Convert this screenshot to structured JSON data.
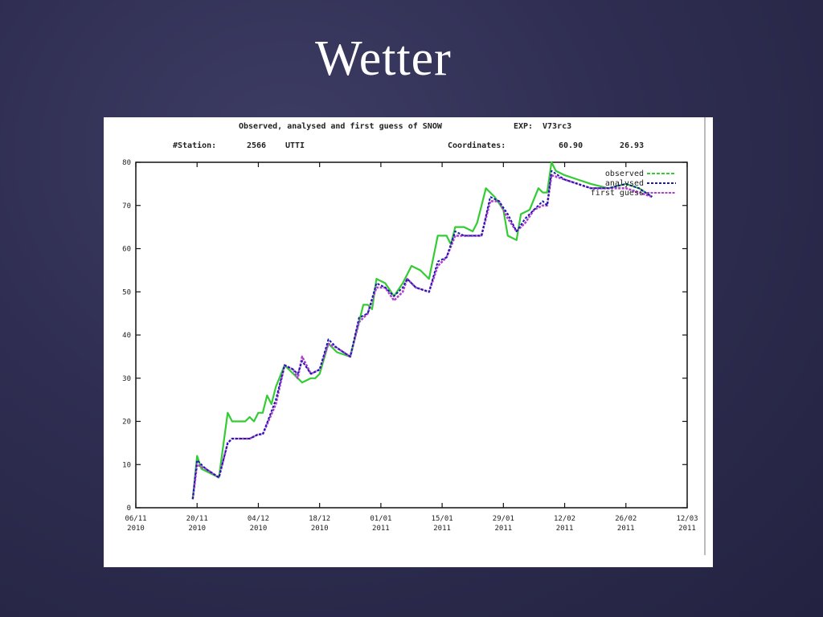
{
  "slide": {
    "title": "Wetter"
  },
  "chart_header": {
    "title": "Observed, analysed and first guess of SNOW",
    "exp_label": "EXP:",
    "exp_value": "V73rc3",
    "station_label": "#Station:",
    "station_id": "2566",
    "station_name": "UTTI",
    "coord_label": "Coordinates:",
    "coord_lat": "60.90",
    "coord_lon": "26.93"
  },
  "colors": {
    "observed": "#33cc33",
    "analysed": "#1a1ab0",
    "first_guess": "#b040d0",
    "background": "#ffffff"
  },
  "chart_data": {
    "type": "line",
    "title": "Observed, analysed and first guess of SNOW",
    "xlabel": "",
    "ylabel": "",
    "x_range": [
      "2010-11-06",
      "2011-03-12"
    ],
    "ylim": [
      0,
      80
    ],
    "yticks": [
      0,
      10,
      20,
      30,
      40,
      50,
      60,
      70,
      80
    ],
    "xticks": [
      {
        "date": "2010-11-06",
        "line1": "06/11",
        "line2": "2010"
      },
      {
        "date": "2010-11-20",
        "line1": "20/11",
        "line2": "2010"
      },
      {
        "date": "2010-12-04",
        "line1": "04/12",
        "line2": "2010"
      },
      {
        "date": "2010-12-18",
        "line1": "18/12",
        "line2": "2010"
      },
      {
        "date": "2011-01-01",
        "line1": "01/01",
        "line2": "2011"
      },
      {
        "date": "2011-01-15",
        "line1": "15/01",
        "line2": "2011"
      },
      {
        "date": "2011-01-29",
        "line1": "29/01",
        "line2": "2011"
      },
      {
        "date": "2011-02-12",
        "line1": "12/02",
        "line2": "2011"
      },
      {
        "date": "2011-02-26",
        "line1": "26/02",
        "line2": "2011"
      },
      {
        "date": "2011-03-12",
        "line1": "12/03",
        "line2": "2011"
      }
    ],
    "legend_position": "top-right",
    "grid": false,
    "series": [
      {
        "name": "observed",
        "points": [
          [
            "2010-11-19",
            2
          ],
          [
            "2010-11-20",
            12
          ],
          [
            "2010-11-21",
            9
          ],
          [
            "2010-11-23",
            8
          ],
          [
            "2010-11-25",
            7
          ],
          [
            "2010-11-27",
            22
          ],
          [
            "2010-11-28",
            20
          ],
          [
            "2010-12-01",
            20
          ],
          [
            "2010-12-02",
            21
          ],
          [
            "2010-12-03",
            20
          ],
          [
            "2010-12-04",
            22
          ],
          [
            "2010-12-05",
            22
          ],
          [
            "2010-12-06",
            26
          ],
          [
            "2010-12-07",
            24
          ],
          [
            "2010-12-08",
            28
          ],
          [
            "2010-12-10",
            33
          ],
          [
            "2010-12-12",
            31
          ],
          [
            "2010-12-14",
            29
          ],
          [
            "2010-12-16",
            30
          ],
          [
            "2010-12-17",
            30
          ],
          [
            "2010-12-18",
            31
          ],
          [
            "2010-12-20",
            38
          ],
          [
            "2010-12-22",
            36
          ],
          [
            "2010-12-25",
            35
          ],
          [
            "2010-12-28",
            47
          ],
          [
            "2010-12-29",
            47
          ],
          [
            "2010-12-30",
            46
          ],
          [
            "2010-12-31",
            53
          ],
          [
            "2011-01-02",
            52
          ],
          [
            "2011-01-04",
            49
          ],
          [
            "2011-01-06",
            52
          ],
          [
            "2011-01-08",
            56
          ],
          [
            "2011-01-10",
            55
          ],
          [
            "2011-01-12",
            53
          ],
          [
            "2011-01-14",
            63
          ],
          [
            "2011-01-16",
            63
          ],
          [
            "2011-01-17",
            61
          ],
          [
            "2011-01-18",
            65
          ],
          [
            "2011-01-20",
            65
          ],
          [
            "2011-01-22",
            64
          ],
          [
            "2011-01-23",
            66
          ],
          [
            "2011-01-25",
            74
          ],
          [
            "2011-01-27",
            72
          ],
          [
            "2011-01-29",
            69
          ],
          [
            "2011-01-30",
            63
          ],
          [
            "2011-02-01",
            62
          ],
          [
            "2011-02-02",
            68
          ],
          [
            "2011-02-04",
            69
          ],
          [
            "2011-02-06",
            74
          ],
          [
            "2011-02-07",
            73
          ],
          [
            "2011-02-08",
            73
          ],
          [
            "2011-02-09",
            80
          ],
          [
            "2011-02-10",
            78
          ],
          [
            "2011-02-12",
            77
          ],
          [
            "2011-02-15",
            76
          ],
          [
            "2011-02-18",
            75
          ],
          [
            "2011-02-22",
            74
          ],
          [
            "2011-02-26",
            75
          ],
          [
            "2011-03-01",
            74
          ],
          [
            "2011-03-04",
            72
          ]
        ]
      },
      {
        "name": "analysed",
        "points": [
          [
            "2010-11-19",
            2
          ],
          [
            "2010-11-20",
            11
          ],
          [
            "2010-11-22",
            9
          ],
          [
            "2010-11-25",
            7
          ],
          [
            "2010-11-27",
            15
          ],
          [
            "2010-11-28",
            16
          ],
          [
            "2010-12-02",
            16
          ],
          [
            "2010-12-04",
            17
          ],
          [
            "2010-12-05",
            17
          ],
          [
            "2010-12-08",
            25
          ],
          [
            "2010-12-10",
            33
          ],
          [
            "2010-12-12",
            32
          ],
          [
            "2010-12-13",
            31
          ],
          [
            "2010-12-14",
            34
          ],
          [
            "2010-12-16",
            31
          ],
          [
            "2010-12-18",
            32
          ],
          [
            "2010-12-20",
            39
          ],
          [
            "2010-12-22",
            37
          ],
          [
            "2010-12-25",
            35
          ],
          [
            "2010-12-27",
            44
          ],
          [
            "2010-12-29",
            45
          ],
          [
            "2010-12-31",
            52
          ],
          [
            "2011-01-02",
            51
          ],
          [
            "2011-01-04",
            49
          ],
          [
            "2011-01-06",
            51
          ],
          [
            "2011-01-07",
            53
          ],
          [
            "2011-01-09",
            51
          ],
          [
            "2011-01-12",
            50
          ],
          [
            "2011-01-14",
            57
          ],
          [
            "2011-01-16",
            58
          ],
          [
            "2011-01-18",
            64
          ],
          [
            "2011-01-20",
            63
          ],
          [
            "2011-01-24",
            63
          ],
          [
            "2011-01-26",
            72
          ],
          [
            "2011-01-28",
            71
          ],
          [
            "2011-01-30",
            68
          ],
          [
            "2011-02-01",
            64
          ],
          [
            "2011-02-03",
            67
          ],
          [
            "2011-02-05",
            69
          ],
          [
            "2011-02-07",
            71
          ],
          [
            "2011-02-08",
            70
          ],
          [
            "2011-02-09",
            78
          ],
          [
            "2011-02-12",
            76
          ],
          [
            "2011-02-15",
            75
          ],
          [
            "2011-02-18",
            74
          ],
          [
            "2011-02-22",
            74
          ],
          [
            "2011-02-26",
            75
          ],
          [
            "2011-03-01",
            74
          ],
          [
            "2011-03-04",
            72
          ]
        ]
      },
      {
        "name": "first guess",
        "points": [
          [
            "2010-11-19",
            2
          ],
          [
            "2010-11-20",
            10
          ],
          [
            "2010-11-22",
            9
          ],
          [
            "2010-11-25",
            7
          ],
          [
            "2010-11-27",
            15
          ],
          [
            "2010-11-28",
            16
          ],
          [
            "2010-12-02",
            16
          ],
          [
            "2010-12-04",
            17
          ],
          [
            "2010-12-05",
            17
          ],
          [
            "2010-12-08",
            24
          ],
          [
            "2010-12-10",
            33
          ],
          [
            "2010-12-12",
            32
          ],
          [
            "2010-12-13",
            30
          ],
          [
            "2010-12-14",
            35
          ],
          [
            "2010-12-16",
            31
          ],
          [
            "2010-12-18",
            32
          ],
          [
            "2010-12-20",
            38
          ],
          [
            "2010-12-22",
            37
          ],
          [
            "2010-12-25",
            35
          ],
          [
            "2010-12-27",
            43
          ],
          [
            "2010-12-29",
            45
          ],
          [
            "2010-12-31",
            51
          ],
          [
            "2011-01-02",
            51
          ],
          [
            "2011-01-04",
            48
          ],
          [
            "2011-01-06",
            50
          ],
          [
            "2011-01-07",
            53
          ],
          [
            "2011-01-09",
            51
          ],
          [
            "2011-01-12",
            50
          ],
          [
            "2011-01-14",
            56
          ],
          [
            "2011-01-16",
            58
          ],
          [
            "2011-01-18",
            63
          ],
          [
            "2011-01-20",
            63
          ],
          [
            "2011-01-24",
            63
          ],
          [
            "2011-01-26",
            71
          ],
          [
            "2011-01-28",
            71
          ],
          [
            "2011-01-30",
            67
          ],
          [
            "2011-02-01",
            64
          ],
          [
            "2011-02-03",
            66
          ],
          [
            "2011-02-05",
            69
          ],
          [
            "2011-02-07",
            70
          ],
          [
            "2011-02-08",
            70
          ],
          [
            "2011-02-09",
            77
          ],
          [
            "2011-02-12",
            76
          ],
          [
            "2011-02-15",
            75
          ],
          [
            "2011-02-18",
            74
          ],
          [
            "2011-02-22",
            74
          ],
          [
            "2011-02-26",
            74
          ],
          [
            "2011-03-01",
            73
          ],
          [
            "2011-03-04",
            72
          ]
        ]
      }
    ]
  }
}
